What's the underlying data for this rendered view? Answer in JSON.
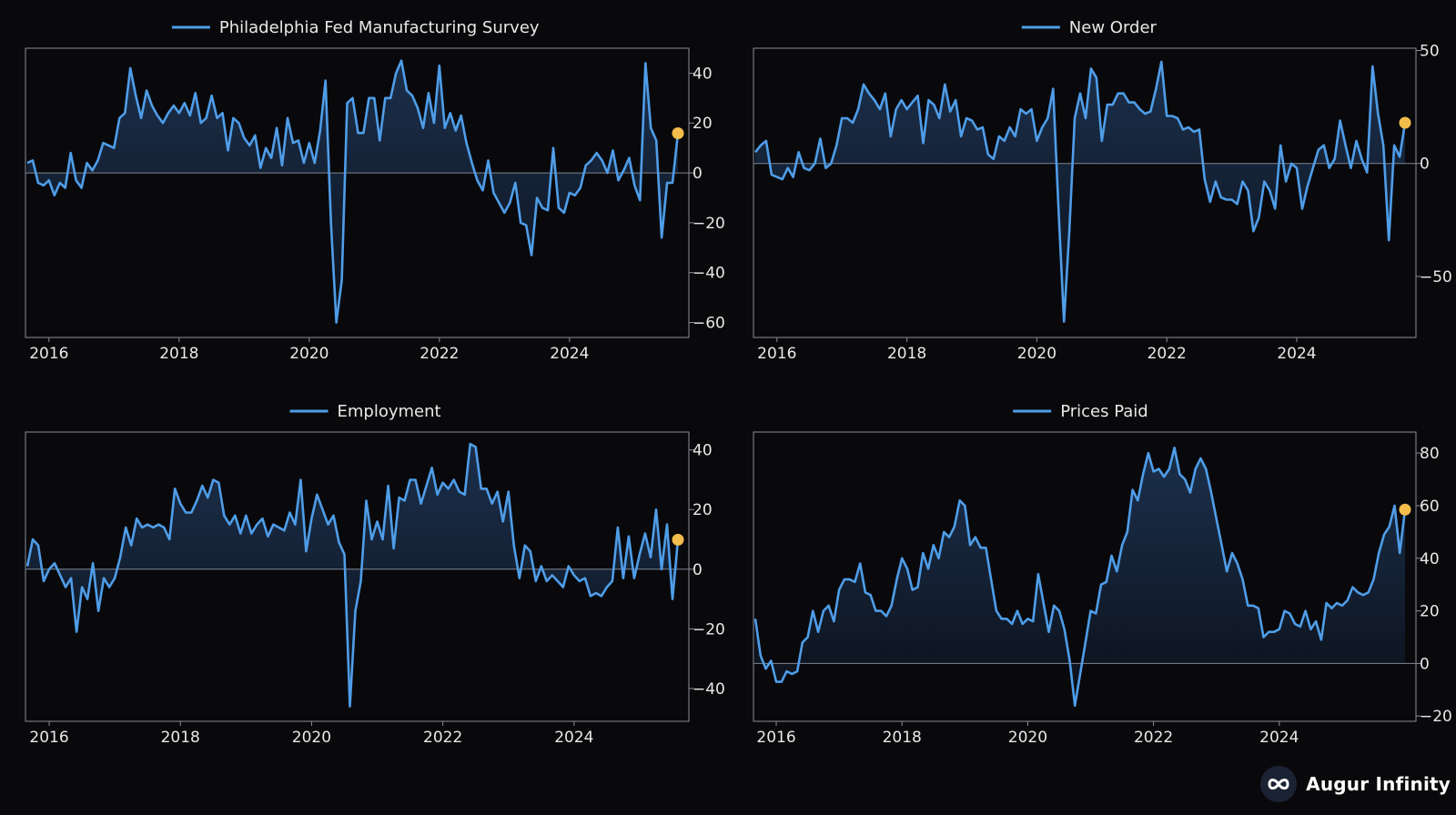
{
  "colors": {
    "background": "#09090c",
    "line": "#4f9de8",
    "marker": "#f2bd4b",
    "axis": "#8a8f9a",
    "zero_line": "#7f8694",
    "text": "#e8e8e8"
  },
  "brand": {
    "name": "Augur Infinity",
    "icon": "infinity-icon"
  },
  "chart_data": [
    {
      "type": "area",
      "title": "Philadelphia Fed Manufacturing Survey",
      "legend": "top-center",
      "x_start": "2015-09",
      "frequency": "monthly",
      "x_ticks": [
        "2016",
        "2018",
        "2020",
        "2022",
        "2024"
      ],
      "y_ticks": [
        40,
        20,
        0,
        -20,
        -40,
        -60
      ],
      "ylim": [
        -66,
        50
      ],
      "y_axis": "right",
      "series": [
        {
          "name": "Philadelphia Fed Manufacturing Survey",
          "values": [
            4,
            5,
            -4,
            -5,
            -3,
            -9,
            -4,
            -6,
            8,
            -3,
            -6,
            4,
            1,
            5,
            12,
            11,
            10,
            22,
            24,
            42,
            31,
            22,
            33,
            27,
            23,
            20,
            24,
            27,
            24,
            28,
            23,
            32,
            20,
            22,
            31,
            22,
            24,
            9,
            22,
            20,
            14,
            11,
            15,
            2,
            10,
            6,
            18,
            3,
            22,
            12,
            13,
            4,
            12,
            4,
            17,
            37,
            -20,
            -60,
            -43,
            28,
            30,
            16,
            16,
            30,
            30,
            13,
            30,
            30,
            40,
            45,
            33,
            31,
            26,
            18,
            32,
            20,
            43,
            18,
            24,
            17,
            23,
            12,
            4,
            -3,
            -7,
            5,
            -8,
            -12,
            -16,
            -12,
            -4,
            -20,
            -21,
            -33,
            -10,
            -14,
            -15,
            10,
            -14,
            -16,
            -8,
            -9,
            -6,
            3,
            5,
            8,
            5,
            0,
            9,
            -3,
            1,
            6,
            -5,
            -11,
            44,
            18,
            13,
            -26,
            -4,
            -4,
            15.9
          ]
        }
      ],
      "last_value_marker": 15.9
    },
    {
      "type": "area",
      "title": "New Order",
      "legend": "top-center",
      "x_start": "2015-09",
      "frequency": "monthly",
      "x_ticks": [
        "2016",
        "2018",
        "2020",
        "2022",
        "2024"
      ],
      "y_ticks": [
        50,
        0,
        -50
      ],
      "ylim": [
        -77,
        51
      ],
      "y_axis": "right",
      "series": [
        {
          "name": "New Order",
          "values": [
            5,
            8,
            10,
            -5,
            -6,
            -7,
            -2,
            -6,
            5,
            -2,
            -3,
            0,
            11,
            -2,
            0,
            8,
            20,
            20,
            18,
            24,
            35,
            31,
            28,
            24,
            31,
            12,
            24,
            28,
            24,
            27,
            30,
            9,
            28,
            26,
            20,
            35,
            23,
            28,
            12,
            20,
            19,
            15,
            16,
            4,
            2,
            12,
            10,
            16,
            12,
            24,
            22,
            24,
            10,
            16,
            20,
            33,
            -20,
            -70,
            -30,
            20,
            31,
            20,
            42,
            38,
            10,
            26,
            26,
            31,
            31,
            27,
            27,
            24,
            22,
            23,
            33,
            45,
            21,
            21,
            20,
            15,
            16,
            14,
            15,
            -7,
            -17,
            -8,
            -15,
            -16,
            -16,
            -18,
            -8,
            -12,
            -30,
            -24,
            -8,
            -12,
            -20,
            8,
            -8,
            0,
            -2,
            -20,
            -10,
            -2,
            6,
            8,
            -2,
            2,
            19,
            8,
            -2,
            10,
            2,
            -4,
            43,
            22,
            8,
            -34,
            8,
            3,
            18
          ]
        }
      ],
      "last_value_marker": 18
    },
    {
      "type": "area",
      "title": "Employment",
      "legend": "top-center",
      "x_start": "2015-09",
      "frequency": "monthly",
      "x_ticks": [
        "2016",
        "2018",
        "2020",
        "2022",
        "2024"
      ],
      "y_ticks": [
        40,
        20,
        0,
        -20,
        -40
      ],
      "ylim": [
        -51,
        46
      ],
      "y_axis": "right",
      "series": [
        {
          "name": "Employment",
          "values": [
            1,
            10,
            8,
            -4,
            0,
            2,
            -2,
            -6,
            -3,
            -21,
            -6,
            -10,
            2,
            -14,
            -3,
            -6,
            -3,
            4,
            14,
            8,
            17,
            14,
            15,
            14,
            15,
            14,
            10,
            27,
            22,
            19,
            19,
            23,
            28,
            24,
            30,
            29,
            18,
            15,
            18,
            12,
            18,
            12,
            15,
            17,
            11,
            15,
            14,
            13,
            19,
            15,
            30,
            6,
            17,
            25,
            20,
            15,
            18,
            9,
            5,
            -46,
            -14,
            -4,
            23,
            10,
            16,
            10,
            28,
            7,
            24,
            23,
            30,
            30,
            22,
            28,
            34,
            25,
            29,
            27,
            30,
            26,
            25,
            42,
            41,
            27,
            27,
            22,
            26,
            16,
            26,
            8,
            -3,
            8,
            6,
            -4,
            1,
            -4,
            -2,
            -4,
            -6,
            1,
            -2,
            -4,
            -3,
            -9,
            -8,
            -9,
            -6,
            -4,
            14,
            -3,
            11,
            -3,
            5,
            12,
            4,
            20,
            0,
            15,
            -10,
            9.9
          ]
        }
      ],
      "last_value_marker": 9.9
    },
    {
      "type": "area",
      "title": "Prices Paid",
      "legend": "top-center",
      "x_start": "2015-09",
      "frequency": "monthly",
      "x_ticks": [
        "2016",
        "2018",
        "2020",
        "2022",
        "2024"
      ],
      "y_ticks": [
        80,
        60,
        40,
        20,
        0,
        -20
      ],
      "ylim": [
        -22,
        88
      ],
      "y_axis": "right",
      "series": [
        {
          "name": "Prices Paid",
          "values": [
            17,
            3,
            -2,
            1,
            -7,
            -7,
            -3,
            -4,
            -3,
            8,
            10,
            20,
            12,
            20,
            22,
            16,
            28,
            32,
            32,
            31,
            38,
            27,
            26,
            20,
            20,
            18,
            22,
            32,
            40,
            36,
            28,
            29,
            42,
            36,
            45,
            40,
            50,
            48,
            52,
            62,
            60,
            45,
            48,
            44,
            44,
            32,
            20,
            17,
            17,
            15,
            20,
            15,
            17,
            16,
            34,
            23,
            12,
            22,
            20,
            13,
            1,
            -16,
            -4,
            8,
            20,
            19,
            30,
            31,
            41,
            35,
            45,
            50,
            66,
            62,
            72,
            80,
            73,
            74,
            71,
            74,
            82,
            72,
            70,
            65,
            74,
            78,
            74,
            65,
            55,
            45,
            35,
            42,
            38,
            32,
            22,
            22,
            21,
            10,
            12,
            12,
            13,
            20,
            19,
            15,
            14,
            20,
            13,
            16,
            9,
            23,
            21,
            23,
            22,
            24,
            29,
            27,
            26,
            27,
            32,
            42,
            49,
            52,
            60,
            42,
            58.5
          ]
        }
      ],
      "last_value_marker": 58.5
    }
  ]
}
